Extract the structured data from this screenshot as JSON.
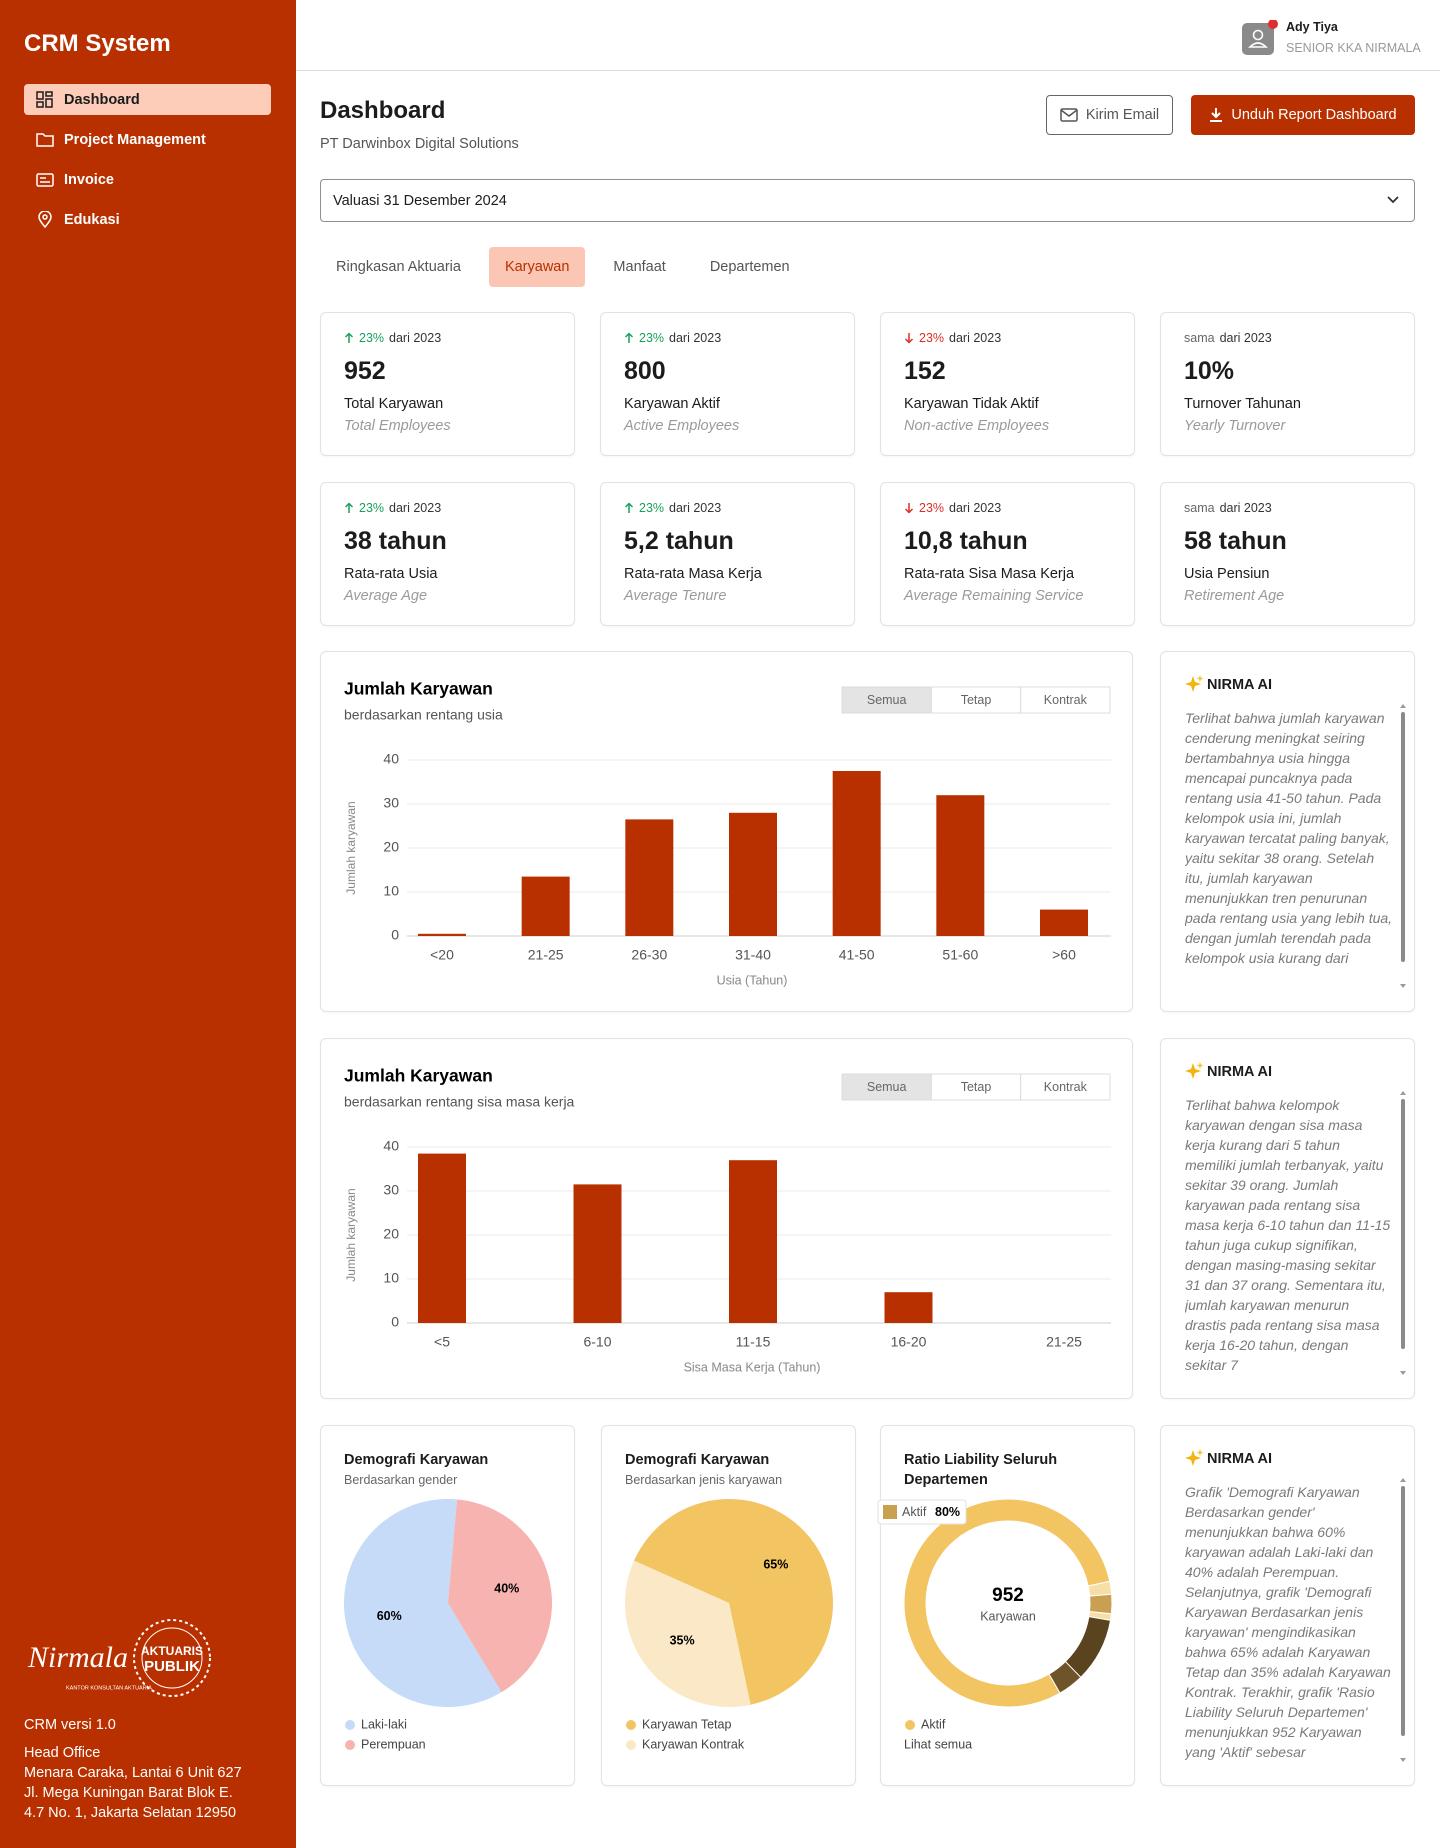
{
  "sidebar": {
    "title": "CRM System",
    "nav": [
      {
        "label": "Dashboard",
        "active": true
      },
      {
        "label": "Project Management"
      },
      {
        "label": "Invoice"
      },
      {
        "label": "Edukasi"
      }
    ],
    "logo": {
      "script": "Nirmala",
      "tagline": "KANTOR KONSULTAN AKTUARIA",
      "badge_top": "AKTUARIS",
      "badge_bottom": "PUBLIK"
    },
    "version": "CRM versi 1.0",
    "office_title": "Head Office",
    "address": [
      "Menara Caraka, Lantai 6 Unit 627",
      "Jl. Mega Kuningan Barat Blok E.",
      "4.7 No. 1, Jakarta Selatan 12950"
    ]
  },
  "user": {
    "name": "Ady Tiya",
    "role": "SENIOR KKA NIRMALA"
  },
  "header": {
    "title": "Dashboard",
    "subtitle": "PT Darwinbox Digital Solutions",
    "buttons": [
      "Kirim Email",
      "Unduh Report Dashboard"
    ]
  },
  "valuation_select": "Valuasi 31 Desember 2024",
  "tabs": {
    "items": [
      "Ringkasan Aktuaria",
      "Karyawan",
      "Manfaat",
      "Departemen"
    ],
    "active": 1
  },
  "stats": [
    {
      "change": "23%",
      "direction": "up",
      "since": "dari 2023",
      "value": "952",
      "label": "Total Karyawan",
      "sublabel": "Total Employees"
    },
    {
      "change": "23%",
      "direction": "up",
      "since": "dari 2023",
      "value": "800",
      "label": "Karyawan Aktif",
      "sublabel": "Active Employees"
    },
    {
      "change": "23%",
      "direction": "down",
      "since": "dari 2023",
      "value": "152",
      "label": "Karyawan Tidak Aktif",
      "sublabel": "Non-active Employees"
    },
    {
      "change": "sama",
      "direction": "same",
      "since": "dari 2023",
      "value": "10%",
      "label": "Turnover Tahunan",
      "sublabel": "Yearly Turnover"
    },
    {
      "change": "23%",
      "direction": "up",
      "since": "dari 2023",
      "value": "38 tahun",
      "label": "Rata-rata Usia",
      "sublabel": "Average Age"
    },
    {
      "change": "23%",
      "direction": "up",
      "since": "dari 2023",
      "value": "5,2 tahun",
      "label": "Rata-rata Masa Kerja",
      "sublabel": "Average Tenure"
    },
    {
      "change": "23%",
      "direction": "down",
      "since": "dari 2023",
      "value": "10,8 tahun",
      "label": "Rata-rata Sisa Masa Kerja",
      "sublabel": "Average Remaining Service"
    },
    {
      "change": "sama",
      "direction": "same",
      "since": "dari 2023",
      "value": "58 tahun",
      "label": "Usia Pensiun",
      "sublabel": "Retirement Age"
    }
  ],
  "chart_data": [
    {
      "type": "bar",
      "title": "Jumlah Karyawan",
      "subtitle": "berdasarkan rentang usia",
      "filters": [
        "Semua",
        "Tetap",
        "Kontrak"
      ],
      "active_filter": 0,
      "y_label": "Jumlah karyawan",
      "x_label": "Usia (Tahun)",
      "categories": [
        "<20",
        "21-25",
        "26-30",
        "31-40",
        "41-50",
        "51-60",
        ">60"
      ],
      "values": [
        0.5,
        13.5,
        26.5,
        28,
        37.5,
        32,
        6
      ],
      "color": "#b83000",
      "ylim": [
        0,
        40
      ],
      "yticks": [
        0,
        10,
        20,
        30,
        40
      ],
      "grid": true
    },
    {
      "type": "bar",
      "title": "Jumlah Karyawan",
      "subtitle": "berdasarkan rentang sisa masa kerja",
      "filters": [
        "Semua",
        "Tetap",
        "Kontrak"
      ],
      "active_filter": 0,
      "y_label": "Jumlah karyawan",
      "x_label": "Sisa Masa Kerja (Tahun)",
      "categories": [
        "<5",
        "6-10",
        "11-15",
        "16-20",
        "21-25"
      ],
      "values": [
        38.5,
        31.5,
        37,
        7,
        0
      ],
      "color": "#b83000",
      "ylim": [
        0,
        40
      ],
      "yticks": [
        0,
        10,
        20,
        30,
        40
      ],
      "grid": true
    },
    {
      "type": "pie",
      "title": "Demografi Karyawan",
      "subtitle": "Berdasarkan gender",
      "categories": [
        "Laki-laki",
        "Perempuan"
      ],
      "values": [
        60,
        40
      ],
      "value_labels": [
        "60%",
        "40%"
      ],
      "colors": [
        "#c5dbf8",
        "#f6b3b0"
      ]
    },
    {
      "type": "pie",
      "title": "Demografi Karyawan",
      "subtitle": "Berdasarkan jenis karyawan",
      "categories": [
        "Karyawan Tetap",
        "Karyawan Kontrak"
      ],
      "values": [
        65,
        35
      ],
      "value_labels": [
        "65%",
        "35%"
      ],
      "colors": [
        "#f3c462",
        "#fae8c6"
      ]
    },
    {
      "type": "donut",
      "title": "Ratio Liability Seluruh Departemen",
      "categories": [
        "Aktif",
        null,
        null,
        null,
        null,
        null
      ],
      "values": [
        80,
        2,
        3,
        1,
        10,
        4
      ],
      "value_labels": [
        "80%",
        null,
        null,
        null,
        null,
        null
      ],
      "colors": [
        "#f3c462",
        "#f6dfa6",
        "#c99f52",
        "#f6dfa6",
        "#5a4420",
        "#6e5428"
      ],
      "center_value": "952",
      "center_label": "Karyawan",
      "legend_link": "Lihat semua"
    }
  ],
  "ai_panels": [
    {
      "title": "NIRMA AI",
      "text": "Terlihat bahwa jumlah karyawan cenderung meningkat seiring bertambahnya usia hingga mencapai puncaknya pada rentang usia 41-50 tahun. Pada kelompok usia ini, jumlah karyawan tercatat paling banyak, yaitu sekitar 38 orang. Setelah itu, jumlah karyawan menunjukkan tren penurunan pada rentang usia yang lebih tua, dengan jumlah terendah pada kelompok usia kurang dari"
    },
    {
      "title": "NIRMA AI",
      "text": "Terlihat bahwa kelompok karyawan dengan sisa masa kerja kurang dari 5 tahun memiliki jumlah terbanyak, yaitu sekitar 39 orang. Jumlah karyawan pada rentang sisa masa kerja 6-10 tahun dan 11-15 tahun juga cukup signifikan, dengan masing-masing sekitar 31 dan 37 orang. Sementara itu, jumlah karyawan menurun drastis pada rentang sisa masa kerja 16-20 tahun, dengan sekitar 7"
    },
    {
      "title": "NIRMA AI",
      "text": "Grafik 'Demografi Karyawan Berdasarkan gender' menunjukkan bahwa 60% karyawan adalah Laki-laki dan 40% adalah Perempuan. Selanjutnya, grafik 'Demografi Karyawan Berdasarkan jenis karyawan' mengindikasikan bahwa 65% adalah Karyawan Tetap dan 35% adalah Karyawan Kontrak. Terakhir, grafik 'Rasio Liability Seluruh Departemen' menunjukkan 952 Karyawan yang 'Aktif' sebesar"
    }
  ]
}
